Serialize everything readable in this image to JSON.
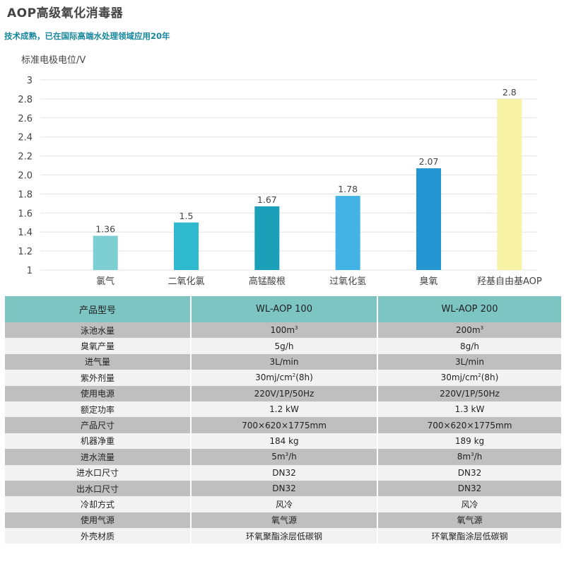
{
  "title": "AOP高级氧化消毒器",
  "subtitle": "技术成熟，已在国际高端水处理领域应用20年",
  "chart_data": {
    "type": "bar",
    "ylabel": "标准电极电位/V",
    "categories": [
      "氯气",
      "二氧化氯",
      "高锰酸根",
      "过氧化氢",
      "臭氧",
      "羟基自由基AOP"
    ],
    "values": [
      1.36,
      1.5,
      1.67,
      1.78,
      2.07,
      2.8
    ],
    "value_labels": [
      "1.36",
      "1.5",
      "1.67",
      "1.78",
      "2.07",
      "2.8"
    ],
    "ylim": [
      1,
      3
    ],
    "yticks": [
      "1",
      "1.2",
      "1.4",
      "1.6",
      "1.8",
      "2.0",
      "2.2",
      "2.4",
      "2.6",
      "2.8",
      "3"
    ],
    "bar_colors": [
      "#7ecfd3",
      "#2fb9ce",
      "#1c9fb8",
      "#43b2e4",
      "#2497d2",
      "#f7f2a6"
    ],
    "grid": true,
    "legend": "none"
  },
  "table": {
    "headers": [
      "产品型号",
      "WL-AOP 100",
      "WL-AOP 200"
    ],
    "rows": [
      {
        "label": "泳池水量",
        "v1": "100m",
        "v1_sup": "3",
        "v1_tail": "",
        "v2": "200m",
        "v2_sup": "3",
        "v2_tail": ""
      },
      {
        "label": "臭氧产量",
        "v1": "5g/h",
        "v2": "8g/h"
      },
      {
        "label": "进气量",
        "v1": "3L/min",
        "v2": "3L/min"
      },
      {
        "label": "紫外剂量",
        "v1": "30mj/cm",
        "v1_sup": "2",
        "v1_tail": "(8h)",
        "v2": "30mj/cm",
        "v2_sup": "2",
        "v2_tail": "(8h)"
      },
      {
        "label": "使用电源",
        "v1": "220V/1P/50Hz",
        "v2": "220V/1P/50Hz"
      },
      {
        "label": "额定功率",
        "v1": "1.2 kW",
        "v2": "1.3 kW"
      },
      {
        "label": "产品尺寸",
        "v1": "700×620×1775mm",
        "v2": "700×620×1775mm"
      },
      {
        "label": "机器净重",
        "v1": "184 kg",
        "v2": "189 kg"
      },
      {
        "label": "进水流量",
        "v1": "5m",
        "v1_sup": "3",
        "v1_tail": "/h",
        "v2": "8m",
        "v2_sup": "3",
        "v2_tail": "/h"
      },
      {
        "label": "进水口尺寸",
        "v1": "DN32",
        "v2": "DN32"
      },
      {
        "label": "出水口尺寸",
        "v1": "DN32",
        "v2": "DN32"
      },
      {
        "label": "冷却方式",
        "v1": "风冷",
        "v2": "风冷"
      },
      {
        "label": "使用气源",
        "v1": "氧气源",
        "v2": "氧气源"
      },
      {
        "label": "外壳材质",
        "v1": "环氧聚酯涂层低碳钢",
        "v2": "环氧聚酯涂层低碳钢"
      }
    ]
  }
}
